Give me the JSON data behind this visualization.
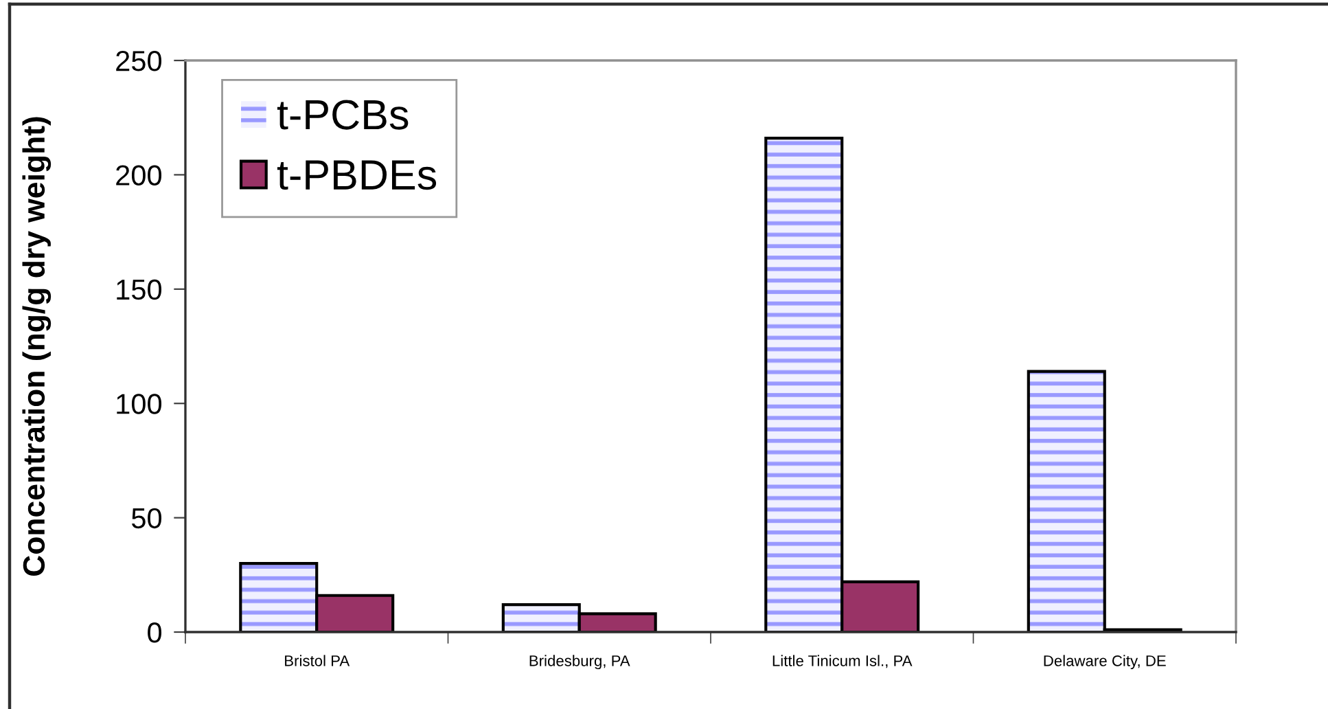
{
  "chart_data": {
    "type": "bar",
    "categories": [
      "Bristol PA",
      "Bridesburg, PA",
      "Little Tinicum Isl., PA",
      "Delaware City, DE"
    ],
    "ylabel": "Concentration (ng/g dry weight)",
    "ylim": [
      0,
      250
    ],
    "yticks": [
      0,
      50,
      100,
      150,
      200,
      250
    ],
    "legend": "top left",
    "grid": false,
    "series": [
      {
        "name": "t-PCBs",
        "color": "#9999ff",
        "values": [
          30,
          12,
          216,
          114
        ]
      },
      {
        "name": "t-PBDEs",
        "color": "#993366",
        "values": [
          16,
          8,
          22,
          1
        ]
      }
    ]
  }
}
